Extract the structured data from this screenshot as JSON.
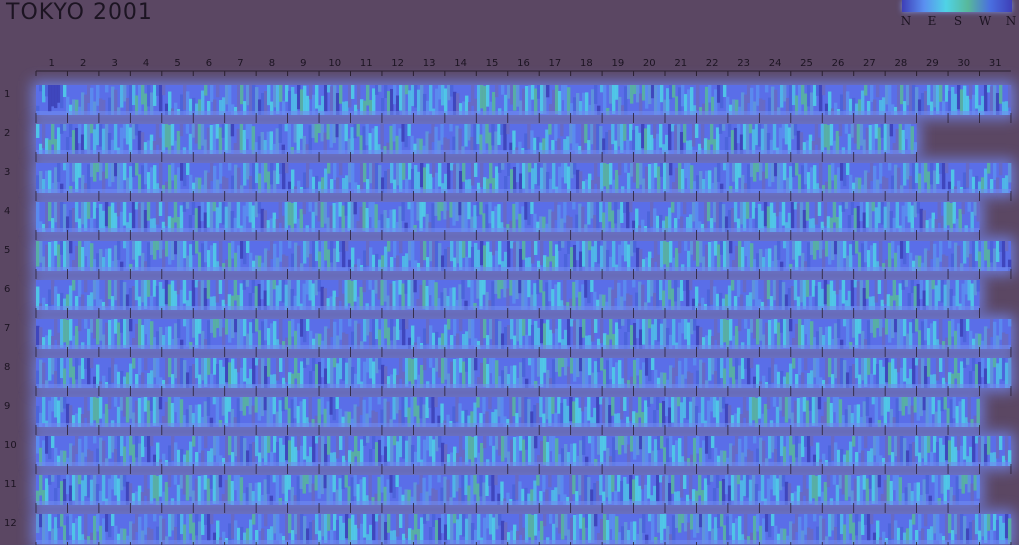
{
  "chart_data": {
    "type": "heatmap",
    "title": "TOKYO 2001",
    "x": [
      "1",
      "2",
      "3",
      "4",
      "5",
      "6",
      "7",
      "8",
      "9",
      "10",
      "11",
      "12",
      "13",
      "14",
      "15",
      "16",
      "17",
      "18",
      "19",
      "20",
      "21",
      "22",
      "23",
      "24",
      "25",
      "26",
      "27",
      "28",
      "29",
      "30",
      "31"
    ],
    "y": [
      "1",
      "2",
      "3",
      "4",
      "5",
      "6",
      "7",
      "8",
      "9",
      "10",
      "11",
      "12"
    ],
    "days_in_month": [
      31,
      28,
      31,
      30,
      31,
      30,
      31,
      31,
      30,
      31,
      30,
      31
    ],
    "legend": {
      "labels": [
        "N",
        "E",
        "S",
        "W",
        "N"
      ],
      "colors": [
        "#3e3fb8",
        "#5a8ff0",
        "#4fd3e6",
        "#58b89a",
        "#3e3fb8"
      ],
      "placement": "top-right"
    },
    "colors": {
      "background": "#5b4763",
      "row_band": "#5a6ee8",
      "glow": "#6f80e6",
      "axis": "#2a2030"
    }
  }
}
